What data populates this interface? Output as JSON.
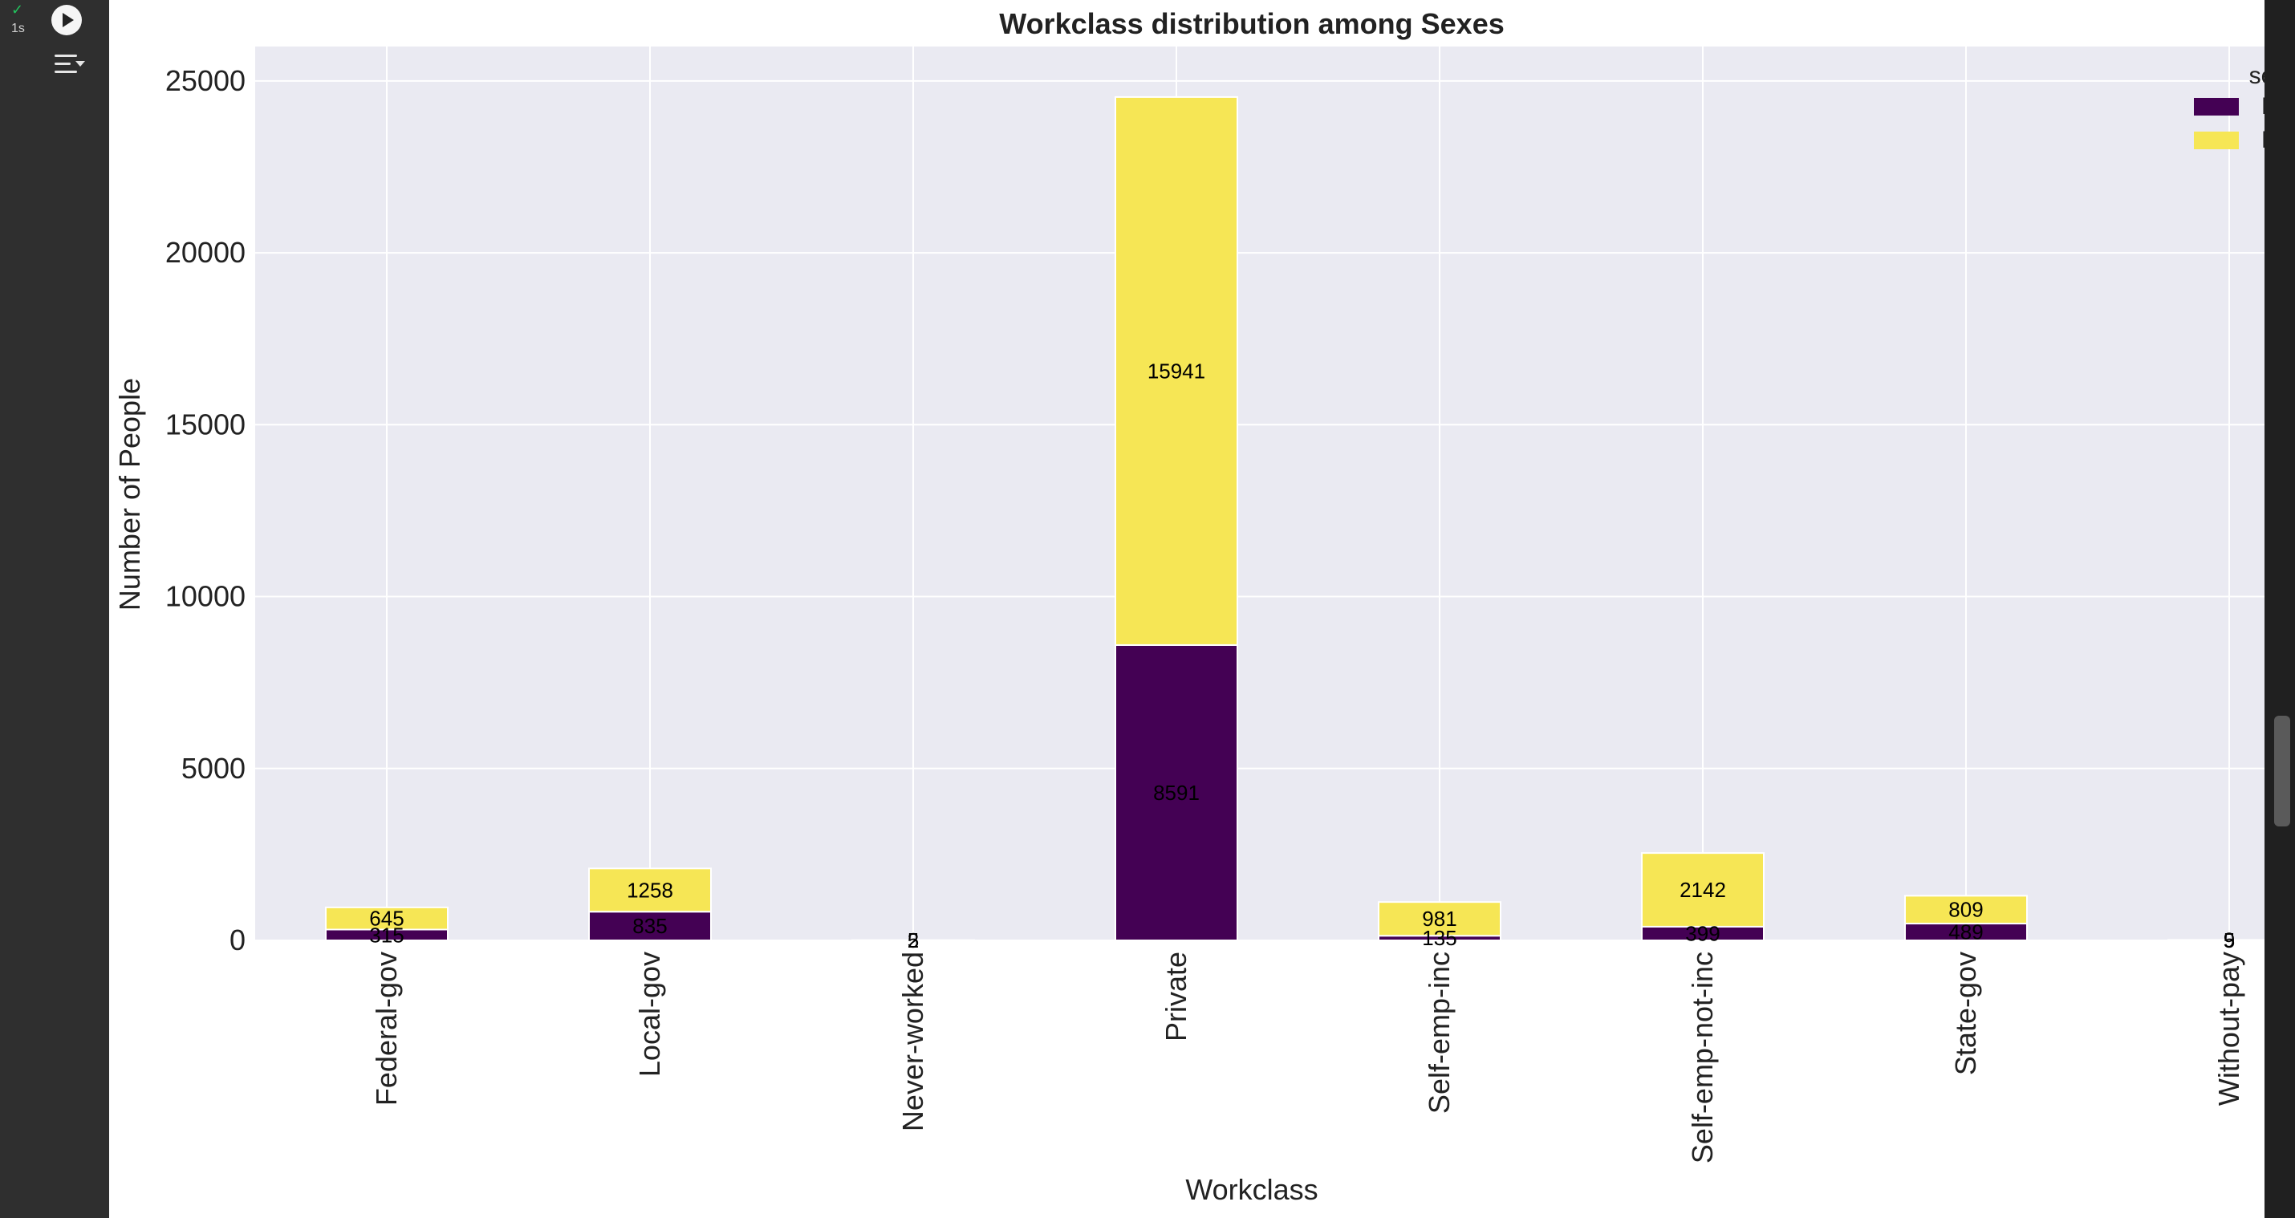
{
  "ui": {
    "status_check": "✓",
    "status_time": "1s",
    "run_icon": "play-icon",
    "output_toggle_icon": "output-toggle-icon"
  },
  "chart_data": {
    "type": "bar",
    "title": "Workclass distribution among Sexes",
    "xlabel": "Workclass",
    "ylabel": "Number of People",
    "categories": [
      "Federal-gov",
      "Local-gov",
      "Never-worked",
      "Private",
      "Self-emp-inc",
      "Self-emp-not-inc",
      "State-gov",
      "Without-pay"
    ],
    "series": [
      {
        "name": "Female",
        "values": [
          315,
          835,
          2,
          8591,
          135,
          399,
          489,
          5
        ],
        "labels": [
          "315",
          "835",
          "2",
          "8591",
          "135",
          "399",
          "489",
          "5"
        ]
      },
      {
        "name": "Male",
        "values": [
          645,
          1258,
          5,
          15941,
          981,
          2142,
          809,
          9
        ],
        "labels": [
          "645",
          "1258",
          "5",
          "15941",
          "981",
          "2142",
          "809",
          "9"
        ]
      }
    ],
    "ylim": [
      0,
      26000
    ],
    "yticks": [
      0,
      5000,
      10000,
      15000,
      20000,
      25000
    ],
    "legend_title": "sex",
    "legend": [
      "Female",
      "Male"
    ],
    "legend_position": "top-right",
    "stacked": true,
    "grid": true,
    "colors": {
      "Female": "#440154",
      "Male": "#f6e655",
      "plot_bg": "#eaeaf2",
      "grid": "#ffffff",
      "text": "#222222"
    }
  }
}
